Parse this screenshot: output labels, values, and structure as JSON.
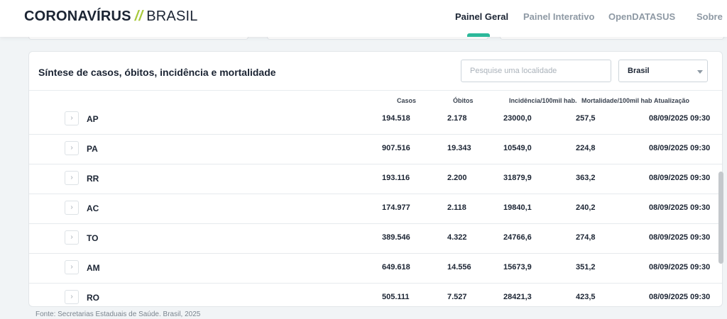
{
  "header": {
    "brand_main": "CORONAVÍRUS",
    "brand_slash": "//",
    "brand_sub": "BRASIL",
    "nav": [
      {
        "label": "Painel Geral",
        "active": true
      },
      {
        "label": "Painel Interativo",
        "active": false
      },
      {
        "label": "OpenDATASUS",
        "active": false
      },
      {
        "label": "Sobre",
        "active": false
      }
    ]
  },
  "panel": {
    "title": "Síntese de casos, óbitos, incidência e mortalidade",
    "search_placeholder": "Pesquise uma localidade",
    "select_value": "Brasil"
  },
  "table": {
    "columns": [
      "Casos",
      "Óbitos",
      "Incidência/100mil hab.",
      "Mortalidade/100mil hab",
      "Atualização"
    ],
    "rows": [
      {
        "uf": "AP",
        "casos": "194.518",
        "obitos": "2.178",
        "incidencia": "23000,0",
        "mortalidade": "257,5",
        "atualizacao": "08/09/2025 09:30"
      },
      {
        "uf": "PA",
        "casos": "907.516",
        "obitos": "19.343",
        "incidencia": "10549,0",
        "mortalidade": "224,8",
        "atualizacao": "08/09/2025 09:30"
      },
      {
        "uf": "RR",
        "casos": "193.116",
        "obitos": "2.200",
        "incidencia": "31879,9",
        "mortalidade": "363,2",
        "atualizacao": "08/09/2025 09:30"
      },
      {
        "uf": "AC",
        "casos": "174.977",
        "obitos": "2.118",
        "incidencia": "19840,1",
        "mortalidade": "240,2",
        "atualizacao": "08/09/2025 09:30"
      },
      {
        "uf": "TO",
        "casos": "389.546",
        "obitos": "4.322",
        "incidencia": "24766,6",
        "mortalidade": "274,8",
        "atualizacao": "08/09/2025 09:30"
      },
      {
        "uf": "AM",
        "casos": "649.618",
        "obitos": "14.556",
        "incidencia": "15673,9",
        "mortalidade": "351,2",
        "atualizacao": "08/09/2025 09:30"
      },
      {
        "uf": "RO",
        "casos": "505.111",
        "obitos": "7.527",
        "incidencia": "28421,3",
        "mortalidade": "423,5",
        "atualizacao": "08/09/2025 09:30"
      }
    ]
  },
  "footer": {
    "source": "Fonte: Secretarias Estaduais de Saúde. Brasil, 2025"
  },
  "icons": {
    "expand": "chevron-right-icon",
    "select_caret": "caret-down-icon"
  },
  "colors": {
    "accent": "#2cb89a",
    "brand_slash": "#a7c93a",
    "text_dark": "#1b2433",
    "nav_muted": "#8e99a4"
  }
}
